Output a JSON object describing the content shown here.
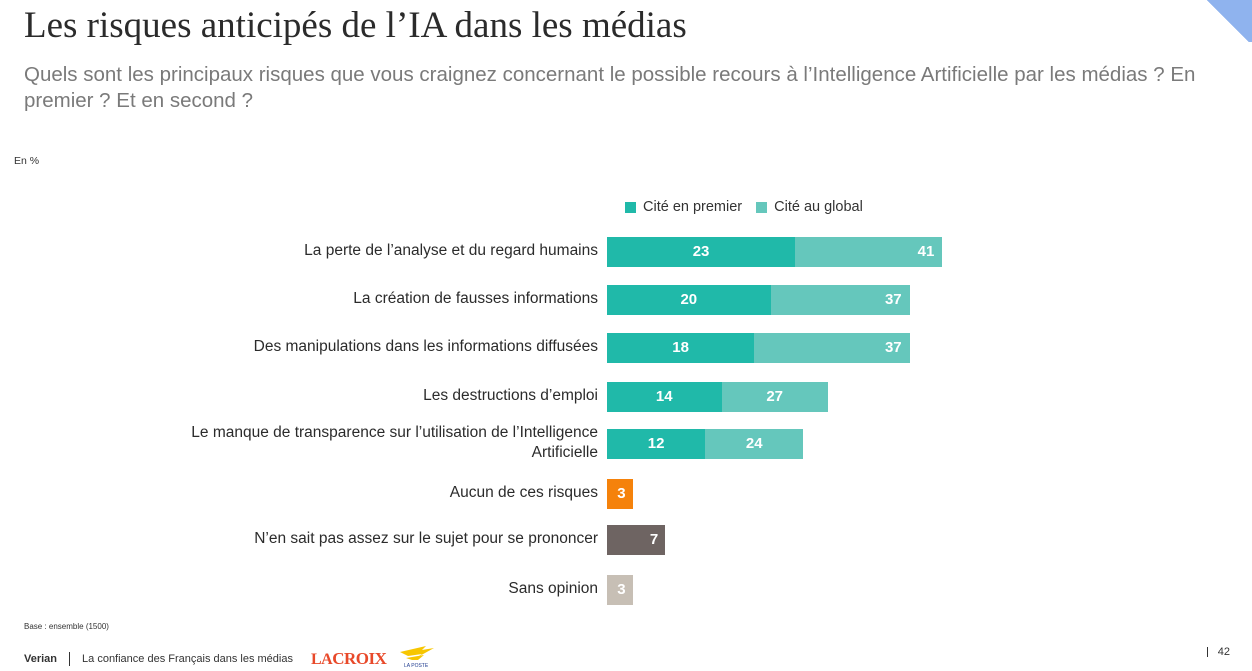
{
  "header": {
    "title": "Les risques anticipés de l’IA dans les médias",
    "subtitle": "Quels sont les principaux risques que vous craignez concernant le possible recours à l’Intelligence Artificielle par les médias ? En premier ? Et en second ?"
  },
  "unit_label": "En %",
  "footer": {
    "base_note": "Base : ensemble (1500)",
    "brand": "Verian",
    "study_title": "La confiance des Français dans les médias",
    "lacroix_logo": "LA CROIX",
    "laposte_logo": "LA POSTE",
    "page_number": "42"
  },
  "colors": {
    "first": "#20b9a9",
    "global": "#65c7bc",
    "none": "#f5820b",
    "dontknow": "#6e6462",
    "noopinion": "#c7bfb5"
  },
  "chart_data": {
    "type": "bar",
    "orientation": "horizontal",
    "legend_placement": "top",
    "series": [
      {
        "name": "Cité en premier",
        "values": [
          23,
          20,
          18,
          14,
          12,
          null,
          null,
          null
        ]
      },
      {
        "name": "Cité au global",
        "values": [
          41,
          37,
          37,
          27,
          24,
          null,
          null,
          null
        ]
      }
    ],
    "categories": [
      "La perte de l’analyse et du regard humains",
      "La création de fausses informations",
      "Des manipulations dans les informations diffusées",
      "Les destructions d’emploi",
      "Le manque de transparence sur l’utilisation de l’Intelligence Artificielle",
      "Aucun de ces risques",
      "N’en sait pas assez sur le sujet pour se prononcer",
      "Sans opinion"
    ],
    "single_values": [
      null,
      null,
      null,
      null,
      null,
      3,
      7,
      3
    ],
    "grid": false
  }
}
